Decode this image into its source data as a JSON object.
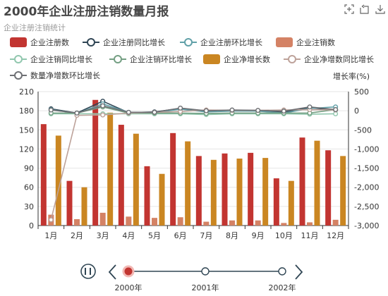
{
  "header": {
    "title": "2000年企业注册注销数量月报",
    "subtitle": "企业注册注销统计",
    "tools": [
      "rect-zoom-icon",
      "zoom-reset-icon",
      "download-icon"
    ]
  },
  "legend": [
    {
      "label": "企业注册数",
      "kind": "bar",
      "color": "#c23531"
    },
    {
      "label": "企业注册同比增长",
      "kind": "line",
      "color": "#2f4554"
    },
    {
      "label": "企业注册环比增长",
      "kind": "line",
      "color": "#61a0a8"
    },
    {
      "label": "企业注销数",
      "kind": "bar",
      "color": "#d48265"
    },
    {
      "label": "企业注销同比增长",
      "kind": "line",
      "color": "#91c7ae"
    },
    {
      "label": "企业注销环比增长",
      "kind": "line",
      "color": "#749f83"
    },
    {
      "label": "企业净增长数",
      "kind": "bar",
      "color": "#ca8622"
    },
    {
      "label": "企业净增数同比增长",
      "kind": "line",
      "color": "#bda29a"
    },
    {
      "label": "数量净增数环比增长",
      "kind": "line",
      "color": "#6e7074"
    }
  ],
  "chart_data": {
    "type": "bar",
    "categories": [
      "1月",
      "2月",
      "3月",
      "4月",
      "5月",
      "6月",
      "7月",
      "8月",
      "9月",
      "10月",
      "11月",
      "12月"
    ],
    "y_left": {
      "min": 0,
      "max": 210,
      "ticks": [
        0,
        30,
        60,
        90,
        120,
        150,
        180,
        210
      ]
    },
    "y_right": {
      "label": "增长率(%)",
      "min": -3000,
      "max": 500,
      "ticks": [
        500,
        0,
        -500,
        -1000,
        -1500,
        -2000,
        -2500,
        -3000
      ],
      "tick_labels": [
        "500",
        "0",
        "-500",
        "-1,000",
        "-1,500",
        "-2,000",
        "-2,500",
        "-3,000"
      ]
    },
    "series": [
      {
        "name": "企业注册数",
        "type": "bar",
        "axis": "left",
        "color": "#c23531",
        "values": [
          159,
          70,
          197,
          158,
          93,
          145,
          109,
          113,
          114,
          74,
          138,
          118
        ]
      },
      {
        "name": "企业注销数",
        "type": "bar",
        "axis": "left",
        "color": "#d48265",
        "values": [
          17,
          10,
          20,
          14,
          12,
          13,
          6,
          8,
          8,
          4,
          5,
          9
        ]
      },
      {
        "name": "企业净增长数",
        "type": "bar",
        "axis": "left",
        "color": "#ca8622",
        "values": [
          141,
          60,
          177,
          144,
          81,
          132,
          103,
          105,
          106,
          70,
          133,
          109
        ]
      },
      {
        "name": "企业注册同比增长",
        "type": "line",
        "axis": "right",
        "color": "#2f4554",
        "values": [
          50,
          -60,
          250,
          -50,
          -30,
          60,
          -20,
          10,
          0,
          -40,
          80,
          20
        ]
      },
      {
        "name": "企业注册环比增长",
        "type": "line",
        "axis": "right",
        "color": "#61a0a8",
        "values": [
          30,
          -70,
          180,
          -40,
          -50,
          40,
          -30,
          -10,
          -10,
          -60,
          60,
          100
        ]
      },
      {
        "name": "企业注销同比增长",
        "type": "line",
        "axis": "right",
        "color": "#91c7ae",
        "values": [
          -80,
          -80,
          -80,
          -80,
          -80,
          -80,
          -100,
          -80,
          -80,
          -80,
          -90,
          -80
        ]
      },
      {
        "name": "企业注销环比增长",
        "type": "line",
        "axis": "right",
        "color": "#749f83",
        "values": [
          -60,
          -60,
          100,
          -60,
          -60,
          -60,
          -70,
          -60,
          -60,
          -60,
          -60,
          30
        ]
      },
      {
        "name": "企业净增数同比增长",
        "type": "line",
        "axis": "right",
        "color": "#bda29a",
        "values": [
          -2850,
          -120,
          -110,
          -60,
          -40,
          -20,
          20,
          10,
          10,
          20,
          30,
          20
        ]
      },
      {
        "name": "数量净增数环比增长",
        "type": "line",
        "axis": "right",
        "color": "#6e7074",
        "values": [
          20,
          -60,
          130,
          -40,
          -40,
          70,
          0,
          20,
          10,
          -10,
          100,
          30
        ]
      }
    ]
  },
  "timeline": {
    "items": [
      "2000年",
      "2001年",
      "2002年"
    ],
    "current_index": 0,
    "play_icon": "pause-icon",
    "prev_icon": "chevron-left-icon",
    "next_icon": "chevron-right-icon"
  }
}
